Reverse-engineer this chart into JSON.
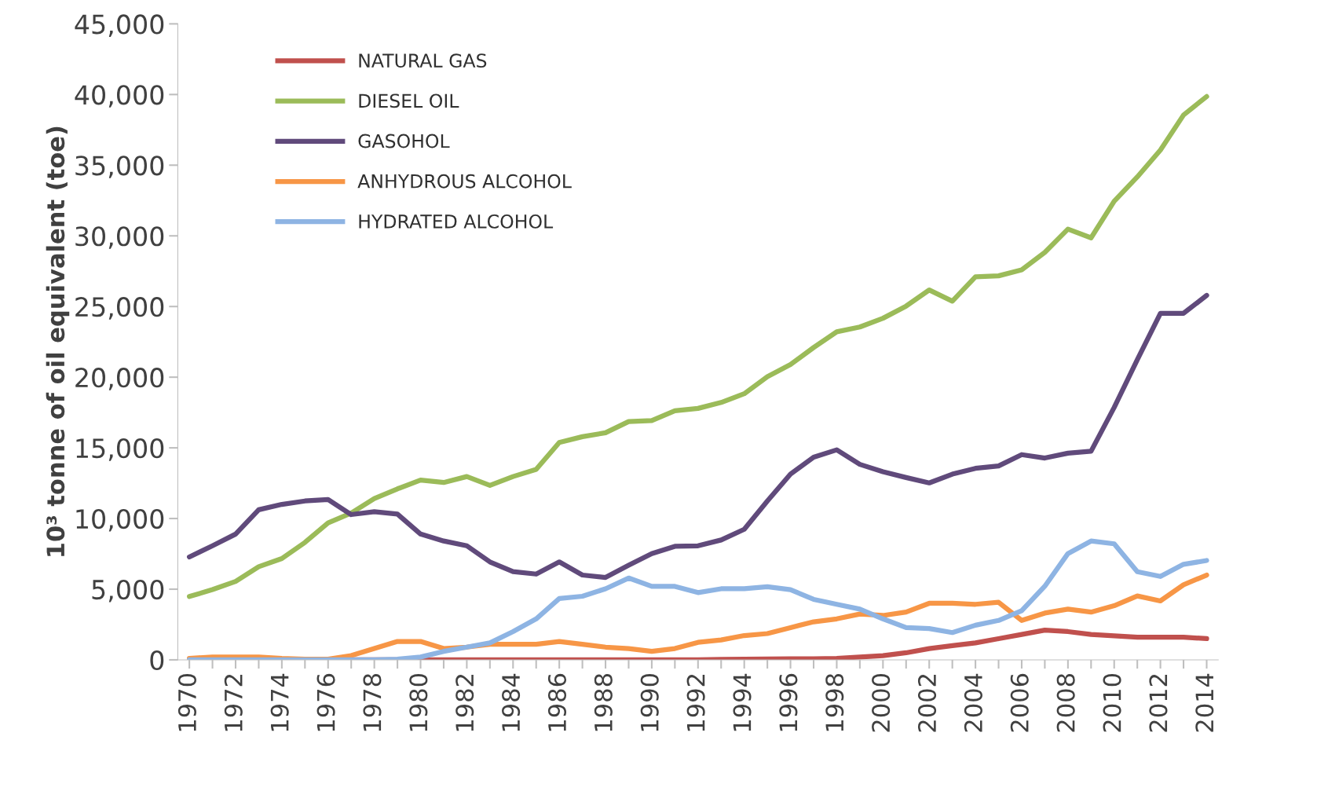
{
  "chart_data": {
    "type": "line",
    "ylabel": "10³ tonne of oil equivalent (toe)",
    "categories": [
      "1970",
      null,
      "1972",
      null,
      "1974",
      null,
      "1976",
      null,
      "1978",
      null,
      "1980",
      null,
      "1982",
      null,
      "1984",
      null,
      "1986",
      null,
      "1988",
      null,
      "1990",
      null,
      "1992",
      null,
      "1994",
      null,
      "1996",
      null,
      "1998",
      null,
      "2000",
      null,
      "2002",
      null,
      "2004",
      null,
      "2006",
      null,
      "2008",
      null,
      "2010",
      null,
      "2012",
      null,
      "2014"
    ],
    "ylim": [
      0,
      45000
    ],
    "yticks": [
      {
        "value": 0,
        "label": "0"
      },
      {
        "value": 5000,
        "label": "5,000"
      },
      {
        "value": 10000,
        "label": "10,000"
      },
      {
        "value": 15000,
        "label": "15,000"
      },
      {
        "value": 20000,
        "label": "20,000"
      },
      {
        "value": 25000,
        "label": "25,000"
      },
      {
        "value": 30000,
        "label": "30,000"
      },
      {
        "value": 35000,
        "label": "35,000"
      },
      {
        "value": 40000,
        "label": "40,000"
      },
      {
        "value": 45000,
        "label": "45,000"
      }
    ],
    "grid": false,
    "legend": "top left",
    "marker": "none",
    "line_style": "solid",
    "series": [
      {
        "name": "NATURAL GAS",
        "color": "#c0504d",
        "values": [
          null,
          null,
          null,
          null,
          null,
          null,
          0,
          0,
          0,
          0,
          0,
          0,
          0,
          0,
          0,
          0,
          0,
          0,
          0,
          0,
          0,
          0,
          0,
          30,
          50,
          60,
          70,
          80,
          100,
          200,
          300,
          500,
          800,
          1000,
          1200,
          1500,
          1800,
          2100,
          2000,
          1800,
          1700,
          1600,
          1600,
          1600,
          1500
        ]
      },
      {
        "name": "DIESEL OIL",
        "color": "#9bbb59",
        "values": [
          4480,
          4970,
          5550,
          6590,
          7170,
          8310,
          9690,
          10380,
          11410,
          12100,
          12720,
          12550,
          12970,
          12340,
          12970,
          13480,
          15380,
          15790,
          16070,
          16860,
          16930,
          17620,
          17790,
          18210,
          18830,
          20030,
          20900,
          22100,
          23210,
          23550,
          24170,
          25030,
          26170,
          25380,
          27100,
          27170,
          27590,
          28830,
          30480,
          29860,
          32450,
          34170,
          36070,
          38550,
          39860
        ]
      },
      {
        "name": "GASOHOL",
        "color": "#604a7b",
        "values": [
          7280,
          8070,
          8900,
          10620,
          11000,
          11240,
          11340,
          10280,
          10480,
          10310,
          8900,
          8410,
          8070,
          6930,
          6240,
          6070,
          6930,
          6000,
          5830,
          6690,
          7520,
          8030,
          8070,
          8480,
          9240,
          11240,
          13140,
          14340,
          14860,
          13830,
          13310,
          12900,
          12520,
          13140,
          13550,
          13720,
          14520,
          14280,
          14620,
          14760,
          17860,
          21240,
          24520,
          24520,
          25790
        ]
      },
      {
        "name": "ANHYDROUS ALCOHOL",
        "color": "#f79646",
        "values": [
          100,
          200,
          200,
          200,
          100,
          50,
          50,
          300,
          800,
          1300,
          1300,
          800,
          900,
          1100,
          1100,
          1100,
          1300,
          1100,
          900,
          800,
          600,
          800,
          1240,
          1410,
          1720,
          1860,
          2280,
          2690,
          2900,
          3240,
          3140,
          3380,
          4000,
          4000,
          3930,
          4070,
          2790,
          3310,
          3590,
          3380,
          3830,
          4520,
          4170,
          5310,
          6000
        ]
      },
      {
        "name": "HYDRATED ALCOHOL",
        "color": "#8eb4e3",
        "values": [
          0,
          0,
          0,
          0,
          0,
          0,
          0,
          0,
          0,
          50,
          200,
          600,
          900,
          1200,
          2000,
          2900,
          4340,
          4500,
          5030,
          5790,
          5200,
          5200,
          4760,
          5030,
          5030,
          5170,
          4970,
          4280,
          3930,
          3590,
          2900,
          2280,
          2210,
          1930,
          2450,
          2790,
          3480,
          5210,
          7520,
          8410,
          8210,
          6240,
          5900,
          6760,
          7030
        ]
      }
    ]
  }
}
